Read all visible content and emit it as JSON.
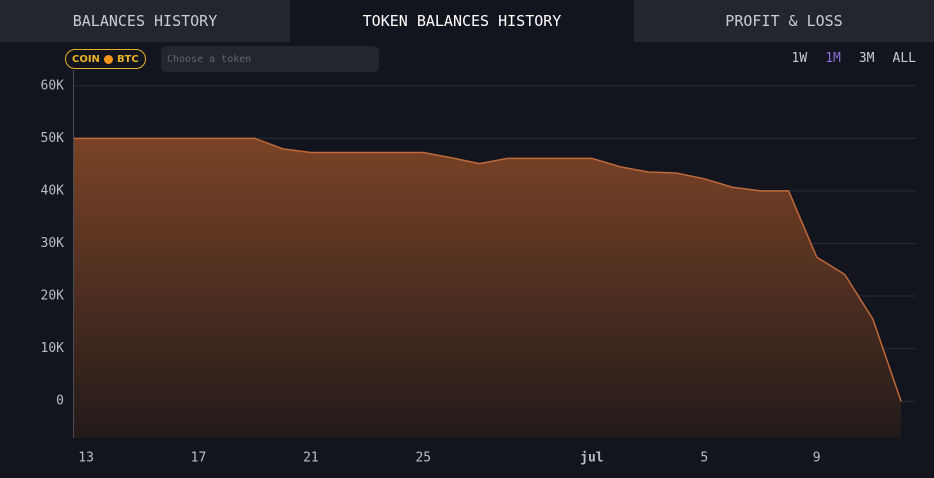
{
  "tabs": [
    "BALANCES HISTORY",
    "TOKEN BALANCES HISTORY",
    "PROFIT & LOSS"
  ],
  "active_tab": 1,
  "filter": {
    "badge": "COIN",
    "token": "BTC",
    "placeholder": "Choose a token"
  },
  "ranges": [
    "1W",
    "1M",
    "3M",
    "ALL"
  ],
  "active_range": 1,
  "chart_data": {
    "type": "area",
    "categories": [
      null,
      "13",
      null,
      null,
      null,
      "17",
      null,
      null,
      null,
      "21",
      null,
      null,
      null,
      "25",
      null,
      null,
      null,
      null,
      null,
      "jul",
      null,
      null,
      null,
      "5",
      null,
      null,
      null,
      "9",
      null,
      null,
      null
    ],
    "values": [
      50000,
      50000,
      50000,
      50000,
      50000,
      50000,
      50000,
      50000,
      48000,
      47300,
      47300,
      47300,
      47300,
      47300,
      46300,
      45200,
      46200,
      46200,
      46200,
      46200,
      44600,
      43600,
      43400,
      42300,
      40700,
      40000,
      40000,
      27400,
      24100,
      15600,
      0
    ],
    "color": "#c0693a",
    "ylim": [
      -7000,
      63000
    ],
    "yticks": [
      {
        "value": 0,
        "label": "0"
      },
      {
        "value": 10000,
        "label": "10K"
      },
      {
        "value": 20000,
        "label": "20K"
      },
      {
        "value": 30000,
        "label": "30K"
      },
      {
        "value": 40000,
        "label": "40K"
      },
      {
        "value": 50000,
        "label": "50K"
      },
      {
        "value": 60000,
        "label": "60K"
      }
    ],
    "grid": true
  }
}
